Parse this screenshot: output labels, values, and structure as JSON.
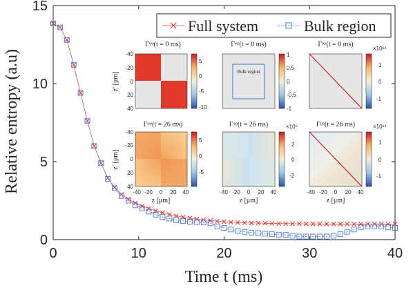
{
  "chart_data": {
    "type": "scatter",
    "xlabel": "Time t (ms)",
    "ylabel": "Relative entropy (a.u)",
    "xlim": [
      0,
      40
    ],
    "ylim": [
      0,
      15
    ],
    "xticks": [
      "0",
      "10",
      "20",
      "30",
      "40"
    ],
    "yticks": [
      "0",
      "5",
      "10",
      "15"
    ],
    "grid": false,
    "legend_position": "top-right",
    "series": [
      {
        "name": "Full system",
        "marker": "x",
        "color": "#e8433b",
        "x": [
          0,
          0.8,
          1.6,
          2.4,
          3.2,
          4,
          4.8,
          5.6,
          6.4,
          7.2,
          8,
          8.8,
          9.6,
          10.4,
          11.2,
          12,
          12.8,
          13.6,
          14.4,
          15.2,
          16,
          16.8,
          17.6,
          18.4,
          19.2,
          20,
          20.8,
          21.6,
          22.4,
          23.2,
          24,
          24.8,
          25.6,
          26.4,
          27.2,
          28,
          28.8,
          29.6,
          30.4,
          31.2,
          32,
          32.8,
          33.6,
          34.4,
          35.2,
          36,
          36.8,
          37.6,
          38.4,
          39.2,
          40
        ],
        "y": [
          13.85,
          13.6,
          12.8,
          11.2,
          9.4,
          7.6,
          6.0,
          4.9,
          3.95,
          3.35,
          2.9,
          2.6,
          2.35,
          2.15,
          2.0,
          1.85,
          1.72,
          1.62,
          1.52,
          1.45,
          1.38,
          1.32,
          1.27,
          1.22,
          1.18,
          1.15,
          1.12,
          1.1,
          1.08,
          1.07,
          1.06,
          1.05,
          1.04,
          1.03,
          1.03,
          1.02,
          1.02,
          1.01,
          1.01,
          1.01,
          1.0,
          1.0,
          1.0,
          1.0,
          1.0,
          1.0,
          1.0,
          1.0,
          1.0,
          1.0,
          1.0
        ]
      },
      {
        "name": "Bulk region",
        "marker": "square",
        "color": "#4a78d8",
        "x": [
          0,
          0.8,
          1.6,
          2.4,
          3.2,
          4,
          4.8,
          5.6,
          6.4,
          7.2,
          8,
          8.8,
          9.6,
          10.4,
          11.2,
          12,
          12.8,
          13.6,
          14.4,
          15.2,
          16,
          16.8,
          17.6,
          18.4,
          19.2,
          20,
          20.8,
          21.6,
          22.4,
          23.2,
          24,
          24.8,
          25.6,
          26.4,
          27.2,
          28,
          28.8,
          29.6,
          30.4,
          31.2,
          32,
          32.8,
          33.6,
          34.4,
          35.2,
          36,
          36.8,
          37.6,
          38.4,
          39.2,
          40
        ],
        "y": [
          13.85,
          13.6,
          12.8,
          11.2,
          9.4,
          7.6,
          6.0,
          4.9,
          3.9,
          3.3,
          2.8,
          2.5,
          2.2,
          2.0,
          1.8,
          1.6,
          1.45,
          1.35,
          1.25,
          1.2,
          1.15,
          1.12,
          1.1,
          1.05,
          0.85,
          0.75,
          0.65,
          0.55,
          0.5,
          0.45,
          0.42,
          0.38,
          0.35,
          0.32,
          0.3,
          0.25,
          0.2,
          0.2,
          0.2,
          0.2,
          0.2,
          0.25,
          0.35,
          0.5,
          0.65,
          0.8,
          0.85,
          0.85,
          0.85,
          0.8,
          0.75
        ]
      }
    ],
    "insets": [
      {
        "title": "Γᵠᵠ(t = 0 ms)",
        "colorbar_ticks": [
          "5",
          "0",
          "-5",
          "-10"
        ],
        "colorbar_exponent": "",
        "annotation": "",
        "ylabel": "z′ [μm]",
        "yticks": [
          "-40",
          "-20",
          "0",
          "20",
          "40"
        ],
        "xlabel": "",
        "xticks": []
      },
      {
        "title": "Γᵠᵖ(t = 0 ms)",
        "colorbar_ticks": [
          "1",
          "0.5",
          "0",
          "-0.5",
          "-1"
        ],
        "colorbar_exponent": "",
        "annotation": "Bulk region",
        "ylabel": "",
        "yticks": [],
        "xlabel": "",
        "xticks": []
      },
      {
        "title": "Γᵖᵖ(t = 0 ms)",
        "colorbar_ticks": [
          "1",
          "0",
          "-1"
        ],
        "colorbar_exponent": "×10¹⁴",
        "annotation": "",
        "ylabel": "",
        "yticks": [],
        "xlabel": "",
        "xticks": []
      },
      {
        "title": "Γᵠᵠ(t = 26 ms)",
        "colorbar_ticks": [
          "5",
          "0",
          "-5"
        ],
        "colorbar_exponent": "",
        "annotation": "",
        "ylabel": "z′ [μm]",
        "yticks": [
          "-40",
          "-20",
          "0",
          "20",
          "40"
        ],
        "xlabel": "z [μm]",
        "xticks": [
          "-40",
          "-20",
          "0",
          "20",
          "40"
        ]
      },
      {
        "title": "Γᵠᵖ(t = 26 ms)",
        "colorbar_ticks": [
          "2",
          "0",
          "-2"
        ],
        "colorbar_exponent": "×10⁶",
        "annotation": "",
        "ylabel": "",
        "yticks": [],
        "xlabel": "z [μm]",
        "xticks": [
          "-40",
          "-20",
          "0",
          "20",
          "40"
        ]
      },
      {
        "title": "Γᵖᵖ(t = 26 ms)",
        "colorbar_ticks": [
          "1",
          "0",
          "-1"
        ],
        "colorbar_exponent": "×10¹⁴",
        "annotation": "",
        "ylabel": "",
        "yticks": [],
        "xlabel": "z [μm]",
        "xticks": [
          "-40",
          "-20",
          "0",
          "20",
          "40"
        ]
      }
    ]
  }
}
